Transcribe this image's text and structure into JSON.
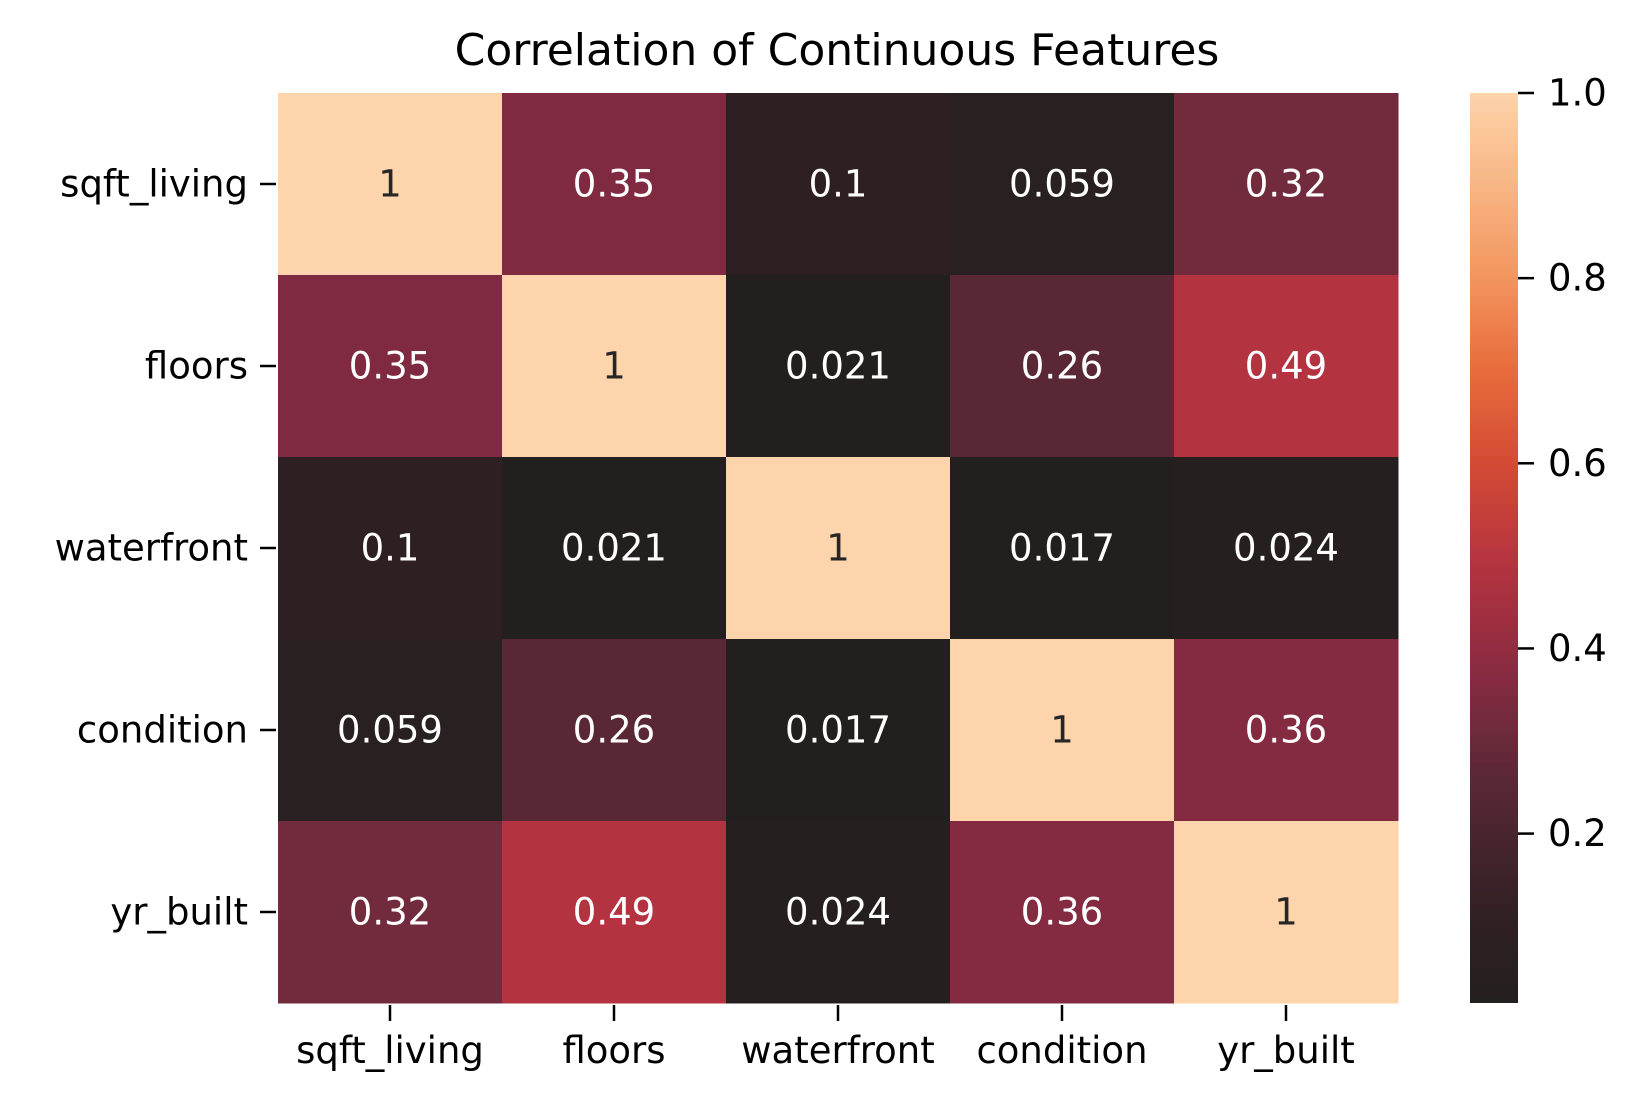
{
  "chart_data": {
    "type": "heatmap",
    "title": "Correlation of Continuous Features",
    "xlabel": "",
    "ylabel": "",
    "x_categories": [
      "sqft_living",
      "floors",
      "waterfront",
      "condition",
      "yr_built"
    ],
    "y_categories": [
      "sqft_living",
      "floors",
      "waterfront",
      "condition",
      "yr_built"
    ],
    "values": [
      [
        1,
        0.35,
        0.1,
        0.059,
        0.32
      ],
      [
        0.35,
        1,
        0.021,
        0.26,
        0.49
      ],
      [
        0.1,
        0.021,
        1,
        0.017,
        0.024
      ],
      [
        0.059,
        0.26,
        0.017,
        1,
        0.36
      ],
      [
        0.32,
        0.49,
        0.024,
        0.36,
        1
      ]
    ],
    "annotations": [
      [
        "1",
        "0.35",
        "0.1",
        "0.059",
        "0.32"
      ],
      [
        "0.35",
        "1",
        "0.021",
        "0.26",
        "0.49"
      ],
      [
        "0.1",
        "0.021",
        "1",
        "0.017",
        "0.024"
      ],
      [
        "0.059",
        "0.26",
        "0.017",
        "1",
        "0.36"
      ],
      [
        "0.32",
        "0.49",
        "0.024",
        "0.36",
        "1"
      ]
    ],
    "colorbar": {
      "range": [
        0.017,
        1.0
      ],
      "ticks": [
        0.2,
        0.4,
        0.6,
        0.8,
        1.0
      ],
      "tick_labels": [
        "0.2",
        "0.4",
        "0.6",
        "0.8",
        "1.0"
      ]
    },
    "colormap": {
      "name": "rocket-like diverging (dark center)",
      "stops": [
        {
          "value": 0.017,
          "color": "#241f1f"
        },
        {
          "value": 0.1,
          "color": "#2e2022"
        },
        {
          "value": 0.26,
          "color": "#5a2835"
        },
        {
          "value": 0.32,
          "color": "#722b3c"
        },
        {
          "value": 0.35,
          "color": "#7f2a40"
        },
        {
          "value": 0.36,
          "color": "#842a41"
        },
        {
          "value": 0.49,
          "color": "#b43340"
        },
        {
          "value": 0.6,
          "color": "#d44b34"
        },
        {
          "value": 0.7,
          "color": "#e86c3c"
        },
        {
          "value": 0.8,
          "color": "#f3955e"
        },
        {
          "value": 0.9,
          "color": "#f8b584"
        },
        {
          "value": 1.0,
          "color": "#fdd4ab"
        }
      ]
    },
    "grid": false,
    "legend": "colorbar-right"
  }
}
